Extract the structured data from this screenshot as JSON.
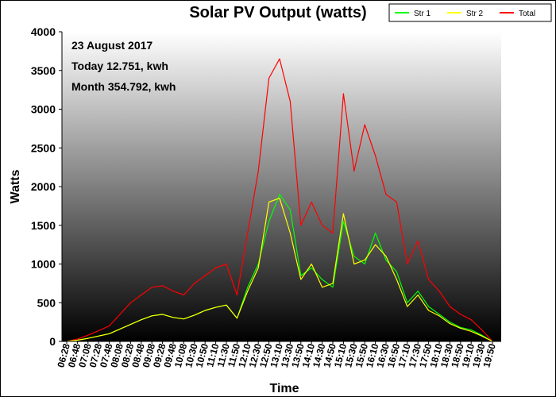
{
  "chart_data": {
    "type": "line",
    "title": "Solar PV Output (watts)",
    "xlabel": "Time",
    "ylabel": "Watts",
    "ylim": [
      0,
      4000
    ],
    "yticks": [
      "0",
      "500",
      "1000",
      "1500",
      "2000",
      "2500",
      "3000",
      "3500",
      "4000"
    ],
    "grid": false,
    "legend_position": "top-right",
    "annotations": [
      "23 August 2017",
      "Today 12.751, kwh",
      "Month 354.792, kwh"
    ],
    "x_ticks": [
      "06:28",
      "06:48",
      "07:08",
      "07:28",
      "07:48",
      "08:08",
      "08:28",
      "08:48",
      "09:08",
      "09:28",
      "09:48",
      "10:08",
      "10:30",
      "10:50",
      "11:10",
      "11:30",
      "11:50",
      "12:10",
      "12:30",
      "12:50",
      "13:10",
      "13:30",
      "13:50",
      "14:10",
      "14:30",
      "14:50",
      "15:10",
      "15:30",
      "15:50",
      "16:10",
      "16:30",
      "16:50",
      "17:10",
      "17:30",
      "17:50",
      "18:10",
      "18:30",
      "18:50",
      "19:10",
      "19:30",
      "19:50"
    ],
    "series": [
      {
        "name": "Str 1",
        "color": "#00ff00",
        "values": [
          0,
          15,
          40,
          70,
          100,
          160,
          220,
          280,
          330,
          350,
          310,
          290,
          340,
          400,
          440,
          470,
          300,
          700,
          1000,
          1550,
          1900,
          1700,
          850,
          950,
          800,
          700,
          1550,
          1100,
          1000,
          1400,
          1050,
          900,
          500,
          650,
          450,
          350,
          250,
          180,
          150,
          80,
          0
        ]
      },
      {
        "name": "Str 2",
        "color": "#ffff00",
        "values": [
          0,
          15,
          40,
          70,
          100,
          160,
          220,
          280,
          330,
          350,
          310,
          290,
          340,
          400,
          440,
          470,
          300,
          650,
          950,
          1800,
          1850,
          1400,
          800,
          1000,
          700,
          750,
          1650,
          1000,
          1050,
          1250,
          1100,
          800,
          450,
          600,
          400,
          330,
          230,
          170,
          130,
          70,
          0
        ]
      },
      {
        "name": "Total",
        "color": "#ff0000",
        "values": [
          0,
          30,
          80,
          140,
          200,
          350,
          500,
          600,
          700,
          720,
          650,
          600,
          750,
          850,
          950,
          1000,
          600,
          1400,
          2200,
          3400,
          3650,
          3100,
          1500,
          1800,
          1500,
          1400,
          3200,
          2200,
          2800,
          2400,
          1900,
          1800,
          1000,
          1300,
          800,
          650,
          450,
          350,
          280,
          150,
          0
        ]
      }
    ]
  }
}
